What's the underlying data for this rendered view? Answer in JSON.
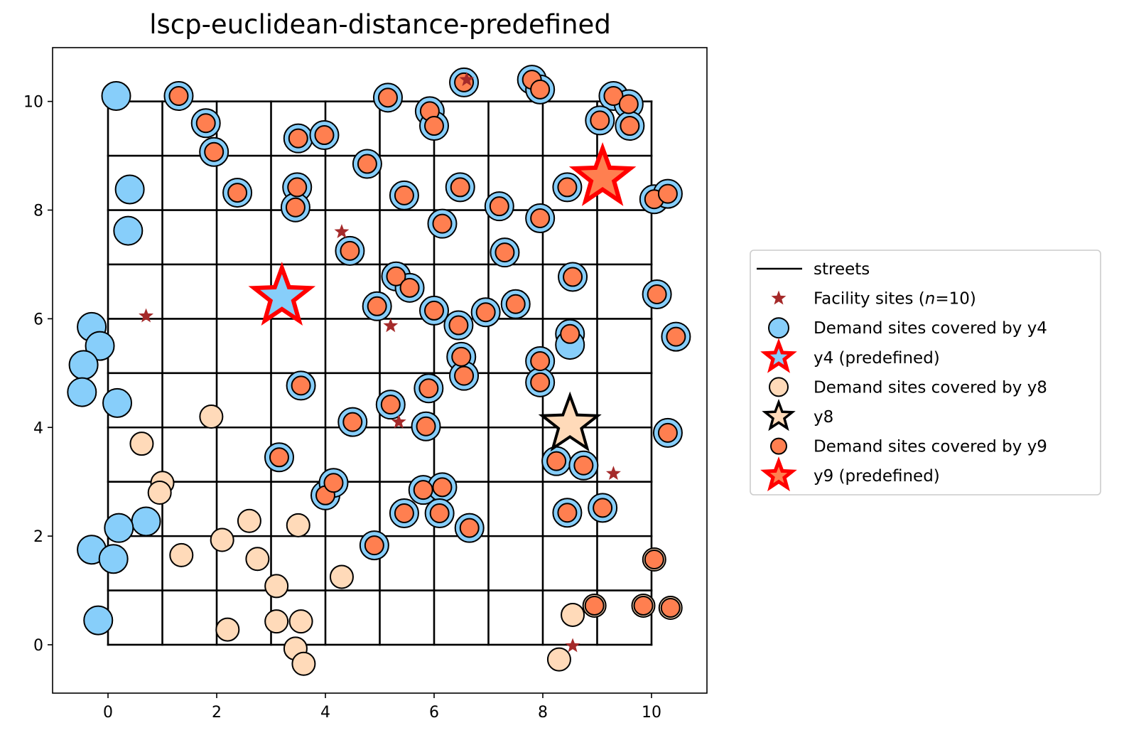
{
  "chart_data": {
    "type": "scatter",
    "title": "lscp-euclidean-distance-predefined",
    "xlabel": "",
    "ylabel": "",
    "xlim": [
      -1.02,
      11.02
    ],
    "ylim": [
      -0.89,
      10.99
    ],
    "xticks": [
      0,
      2,
      4,
      6,
      8,
      10
    ],
    "yticks": [
      0,
      2,
      4,
      6,
      8,
      10
    ],
    "grid": false,
    "legend_position": "right",
    "colors": {
      "street": "#000000",
      "facility": "#a52a2a",
      "y4": "#87cefa",
      "y8": "#ffdab9",
      "y9": "#ff7f50",
      "highlight": "#ff0000"
    },
    "streets": {
      "x_range": [
        0,
        10
      ],
      "y_range": [
        0,
        10
      ],
      "vertical_x": [
        0,
        1,
        2,
        3,
        4,
        5,
        6,
        7,
        8,
        9,
        10
      ],
      "horizontal_y": [
        0,
        1,
        2,
        3,
        4,
        5,
        6,
        7,
        8,
        9,
        10
      ]
    },
    "legend": [
      {
        "label": "streets",
        "kind": "line"
      },
      {
        "label": "Facility sites (",
        "italic": "n",
        "suffix": "=10)",
        "kind": "facility"
      },
      {
        "label": "Demand sites covered by y4",
        "kind": "y4-demand"
      },
      {
        "label": "y4 (predefined)",
        "kind": "y4-star"
      },
      {
        "label": "Demand sites covered by y8",
        "kind": "y8-demand"
      },
      {
        "label": "y8",
        "kind": "y8-star"
      },
      {
        "label": "Demand sites covered by y9",
        "kind": "y9-demand"
      },
      {
        "label": "y9 (predefined)",
        "kind": "y9-star"
      }
    ],
    "facility_sites": [
      [
        6.6,
        10.4
      ],
      [
        4.3,
        7.6
      ],
      [
        0.7,
        6.05
      ],
      [
        5.2,
        5.87
      ],
      [
        5.35,
        4.1
      ],
      [
        9.3,
        3.15
      ],
      [
        8.55,
        -0.02
      ],
      [
        3.2,
        6.4
      ],
      [
        8.5,
        4.05
      ],
      [
        9.1,
        8.6
      ]
    ],
    "selected_facilities": [
      {
        "name": "y4",
        "x": 3.2,
        "y": 6.4,
        "fill": "#87cefa",
        "edge": "#ff0000"
      },
      {
        "name": "y8",
        "x": 8.5,
        "y": 4.05,
        "fill": "#ffdab9",
        "edge": "#000000"
      },
      {
        "name": "y9",
        "x": 9.1,
        "y": 8.6,
        "fill": "#ff7f50",
        "edge": "#ff0000"
      }
    ],
    "series": [
      {
        "name": "Demand sites covered by y4",
        "points": [
          [
            0.15,
            10.1
          ],
          [
            1.3,
            10.1
          ],
          [
            1.8,
            9.6
          ],
          [
            1.95,
            9.07
          ],
          [
            0.4,
            8.38
          ],
          [
            0.37,
            7.62
          ],
          [
            -0.3,
            5.85
          ],
          [
            -0.15,
            5.5
          ],
          [
            -0.45,
            5.15
          ],
          [
            -0.48,
            4.65
          ],
          [
            0.17,
            4.45
          ],
          [
            0.7,
            2.27
          ],
          [
            -0.3,
            1.75
          ],
          [
            0.1,
            1.58
          ],
          [
            0.2,
            2.15
          ],
          [
            -0.18,
            0.45
          ],
          [
            2.38,
            8.32
          ],
          [
            3.48,
            8.42
          ],
          [
            3.45,
            8.05
          ],
          [
            3.5,
            9.32
          ],
          [
            3.98,
            9.38
          ],
          [
            4.77,
            8.85
          ],
          [
            4.45,
            7.25
          ],
          [
            5.15,
            10.07
          ],
          [
            5.92,
            9.82
          ],
          [
            6.0,
            9.55
          ],
          [
            6.55,
            10.35
          ],
          [
            7.8,
            10.4
          ],
          [
            7.95,
            10.22
          ],
          [
            5.45,
            8.27
          ],
          [
            6.48,
            8.42
          ],
          [
            6.15,
            7.75
          ],
          [
            7.2,
            8.07
          ],
          [
            7.95,
            7.85
          ],
          [
            8.45,
            8.42
          ],
          [
            7.3,
            7.22
          ],
          [
            9.3,
            10.1
          ],
          [
            9.58,
            9.95
          ],
          [
            9.6,
            9.55
          ],
          [
            9.05,
            9.65
          ],
          [
            10.05,
            8.2
          ],
          [
            10.3,
            8.3
          ],
          [
            5.3,
            6.78
          ],
          [
            5.55,
            6.57
          ],
          [
            4.95,
            6.23
          ],
          [
            6.0,
            6.15
          ],
          [
            6.95,
            6.12
          ],
          [
            7.5,
            6.27
          ],
          [
            6.45,
            5.88
          ],
          [
            6.5,
            5.3
          ],
          [
            6.55,
            4.95
          ],
          [
            8.55,
            6.77
          ],
          [
            8.5,
            5.72
          ],
          [
            8.5,
            5.52
          ],
          [
            10.1,
            6.45
          ],
          [
            10.45,
            5.67
          ],
          [
            7.95,
            5.22
          ],
          [
            7.95,
            4.83
          ],
          [
            5.9,
            4.72
          ],
          [
            3.55,
            4.77
          ],
          [
            5.2,
            4.42
          ],
          [
            4.5,
            4.1
          ],
          [
            5.85,
            4.02
          ],
          [
            3.15,
            3.45
          ],
          [
            10.3,
            3.9
          ],
          [
            8.25,
            3.38
          ],
          [
            8.75,
            3.3
          ],
          [
            4.0,
            2.75
          ],
          [
            4.15,
            2.98
          ],
          [
            5.8,
            2.85
          ],
          [
            6.15,
            2.9
          ],
          [
            5.45,
            2.42
          ],
          [
            6.1,
            2.42
          ],
          [
            6.65,
            2.15
          ],
          [
            8.45,
            2.43
          ],
          [
            9.1,
            2.52
          ],
          [
            4.9,
            1.83
          ]
        ]
      },
      {
        "name": "Demand sites covered by y8",
        "points": [
          [
            0.62,
            3.7
          ],
          [
            1.0,
            2.98
          ],
          [
            0.95,
            2.8
          ],
          [
            1.35,
            1.65
          ],
          [
            2.1,
            1.93
          ],
          [
            2.6,
            2.28
          ],
          [
            2.75,
            1.58
          ],
          [
            1.9,
            4.2
          ],
          [
            3.1,
            1.08
          ],
          [
            3.5,
            2.2
          ],
          [
            2.2,
            0.28
          ],
          [
            3.1,
            0.43
          ],
          [
            3.55,
            0.43
          ],
          [
            3.45,
            -0.07
          ],
          [
            3.6,
            -0.35
          ],
          [
            4.3,
            1.25
          ],
          [
            8.55,
            0.55
          ],
          [
            8.3,
            -0.27
          ],
          [
            8.95,
            0.72
          ],
          [
            9.85,
            0.72
          ],
          [
            10.35,
            0.68
          ],
          [
            10.05,
            1.57
          ]
        ]
      },
      {
        "name": "Demand sites covered by y9",
        "points": [
          [
            1.3,
            10.1
          ],
          [
            1.8,
            9.6
          ],
          [
            1.95,
            9.07
          ],
          [
            2.38,
            8.32
          ],
          [
            3.48,
            8.42
          ],
          [
            3.45,
            8.05
          ],
          [
            3.5,
            9.32
          ],
          [
            3.98,
            9.38
          ],
          [
            4.77,
            8.85
          ],
          [
            4.45,
            7.25
          ],
          [
            5.15,
            10.07
          ],
          [
            5.92,
            9.82
          ],
          [
            6.0,
            9.55
          ],
          [
            6.55,
            10.35
          ],
          [
            7.8,
            10.4
          ],
          [
            7.95,
            10.22
          ],
          [
            5.45,
            8.27
          ],
          [
            6.48,
            8.42
          ],
          [
            6.15,
            7.75
          ],
          [
            7.2,
            8.07
          ],
          [
            7.95,
            7.85
          ],
          [
            8.45,
            8.42
          ],
          [
            7.3,
            7.22
          ],
          [
            9.3,
            10.1
          ],
          [
            9.58,
            9.95
          ],
          [
            9.6,
            9.55
          ],
          [
            9.05,
            9.65
          ],
          [
            10.05,
            8.2
          ],
          [
            10.3,
            8.3
          ],
          [
            5.3,
            6.78
          ],
          [
            5.55,
            6.57
          ],
          [
            4.95,
            6.23
          ],
          [
            6.0,
            6.15
          ],
          [
            6.95,
            6.12
          ],
          [
            7.5,
            6.27
          ],
          [
            6.45,
            5.88
          ],
          [
            6.5,
            5.3
          ],
          [
            6.55,
            4.95
          ],
          [
            8.55,
            6.77
          ],
          [
            8.5,
            5.72
          ],
          [
            10.1,
            6.45
          ],
          [
            10.45,
            5.67
          ],
          [
            7.95,
            5.22
          ],
          [
            7.95,
            4.83
          ],
          [
            5.9,
            4.72
          ],
          [
            3.55,
            4.77
          ],
          [
            5.2,
            4.42
          ],
          [
            4.5,
            4.1
          ],
          [
            5.85,
            4.02
          ],
          [
            3.15,
            3.45
          ],
          [
            10.3,
            3.9
          ],
          [
            8.25,
            3.38
          ],
          [
            8.75,
            3.3
          ],
          [
            4.0,
            2.75
          ],
          [
            4.15,
            2.98
          ],
          [
            5.8,
            2.85
          ],
          [
            6.15,
            2.9
          ],
          [
            5.45,
            2.42
          ],
          [
            6.1,
            2.42
          ],
          [
            6.65,
            2.15
          ],
          [
            8.45,
            2.43
          ],
          [
            9.1,
            2.52
          ],
          [
            4.9,
            1.83
          ],
          [
            8.95,
            0.72
          ],
          [
            9.85,
            0.72
          ],
          [
            10.35,
            0.68
          ],
          [
            10.05,
            1.57
          ]
        ]
      }
    ]
  }
}
